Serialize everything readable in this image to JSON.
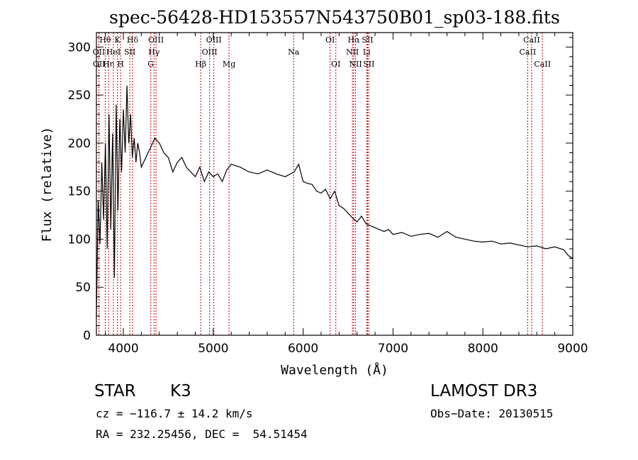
{
  "chart_data": {
    "type": "line",
    "title": "spec-56428-HD153557N543750B01_sp03-188.fits",
    "xlabel": "Wavelength (Å)",
    "ylabel": "Flux (relative)",
    "xlim": [
      3700,
      9000
    ],
    "ylim": [
      0,
      315
    ],
    "xticks": [
      4000,
      5000,
      6000,
      7000,
      8000,
      9000
    ],
    "yticks": [
      0,
      50,
      100,
      150,
      200,
      250,
      300
    ],
    "series": [
      {
        "x": [
          3700,
          3720,
          3740,
          3760,
          3780,
          3800,
          3820,
          3840,
          3860,
          3880,
          3900,
          3920,
          3940,
          3960,
          3980,
          4000,
          4020,
          4040,
          4060,
          4080,
          4100,
          4120,
          4140,
          4160,
          4180,
          4200,
          4250,
          4300,
          4350,
          4400,
          4450,
          4500,
          4550,
          4600,
          4650,
          4700,
          4750,
          4800,
          4850,
          4900,
          4950,
          5000,
          5050,
          5100,
          5150,
          5200,
          5300,
          5400,
          5500,
          5600,
          5700,
          5800,
          5900,
          5950,
          6000,
          6050,
          6100,
          6150,
          6200,
          6250,
          6300,
          6350,
          6400,
          6450,
          6500,
          6550,
          6600,
          6650,
          6700,
          6750,
          6800,
          6850,
          6900,
          6950,
          7000,
          7100,
          7200,
          7300,
          7400,
          7500,
          7600,
          7700,
          7800,
          7900,
          8000,
          8100,
          8200,
          8300,
          8400,
          8500,
          8600,
          8700,
          8800,
          8900,
          8950,
          9000
        ],
        "y": [
          20,
          140,
          95,
          180,
          120,
          200,
          90,
          230,
          110,
          210,
          60,
          240,
          130,
          225,
          170,
          235,
          190,
          260,
          200,
          230,
          185,
          205,
          180,
          200,
          190,
          175,
          185,
          195,
          205,
          200,
          190,
          185,
          170,
          180,
          185,
          175,
          170,
          165,
          175,
          160,
          170,
          165,
          168,
          160,
          172,
          178,
          175,
          170,
          168,
          172,
          168,
          165,
          170,
          178,
          160,
          158,
          157,
          150,
          148,
          152,
          142,
          150,
          135,
          132,
          127,
          122,
          118,
          124,
          116,
          114,
          112,
          110,
          108,
          110,
          105,
          107,
          103,
          105,
          106,
          102,
          108,
          102,
          100,
          98,
          97,
          98,
          95,
          96,
          94,
          92,
          93,
          90,
          92,
          89,
          83,
          80
        ]
      }
    ],
    "lines": [
      {
        "label": "OII",
        "x": 3727,
        "row": 2
      },
      {
        "label": "OII",
        "x": 3729,
        "row": 3
      },
      {
        "label": "Hθ",
        "x": 3798,
        "row": 1
      },
      {
        "label": "Hη",
        "x": 3835,
        "row": 3
      },
      {
        "label": "HeI",
        "x": 3889,
        "row": 2
      },
      {
        "label": "K",
        "x": 3934,
        "row": 1
      },
      {
        "label": "H",
        "x": 3969,
        "row": 3
      },
      {
        "label": "SII",
        "x": 4072,
        "row": 2
      },
      {
        "label": "Hδ",
        "x": 4102,
        "row": 1
      },
      {
        "label": "G",
        "x": 4305,
        "row": 3
      },
      {
        "label": "Hγ",
        "x": 4341,
        "row": 2
      },
      {
        "label": "OIII",
        "x": 4363,
        "row": 1
      },
      {
        "label": "Hβ",
        "x": 4861,
        "row": 3
      },
      {
        "label": "OIII",
        "x": 4959,
        "row": 2
      },
      {
        "label": "OIII",
        "x": 5007,
        "row": 1
      },
      {
        "label": "Mg",
        "x": 5175,
        "row": 3
      },
      {
        "label": "Na",
        "x": 5894,
        "row": 2
      },
      {
        "label": "OI",
        "x": 6300,
        "row": 1
      },
      {
        "label": "OI",
        "x": 6364,
        "row": 3
      },
      {
        "label": "NII",
        "x": 6548,
        "row": 2
      },
      {
        "label": "Hα",
        "x": 6563,
        "row": 1
      },
      {
        "label": "NII",
        "x": 6583,
        "row": 3
      },
      {
        "label": "Li",
        "x": 6707,
        "row": 2
      },
      {
        "label": "SII",
        "x": 6717,
        "row": 1
      },
      {
        "label": "SII",
        "x": 6731,
        "row": 3
      },
      {
        "label": "CaII",
        "x": 8498,
        "row": 2
      },
      {
        "label": "CaII",
        "x": 8542,
        "row": 1
      },
      {
        "label": "CaII",
        "x": 8662,
        "row": 3
      }
    ]
  },
  "info": {
    "class": "STAR",
    "subclass": "K3",
    "survey": "LAMOST DR3",
    "cz": "cz = −116.7 ± 14.2 km/s",
    "obsdate": "Obs−Date: 20130515",
    "radec": "RA = 232.25456, DEC =  54.51454"
  },
  "colors": {
    "line_marker": "#c00000",
    "spectrum": "#000000",
    "axes": "#000000"
  }
}
